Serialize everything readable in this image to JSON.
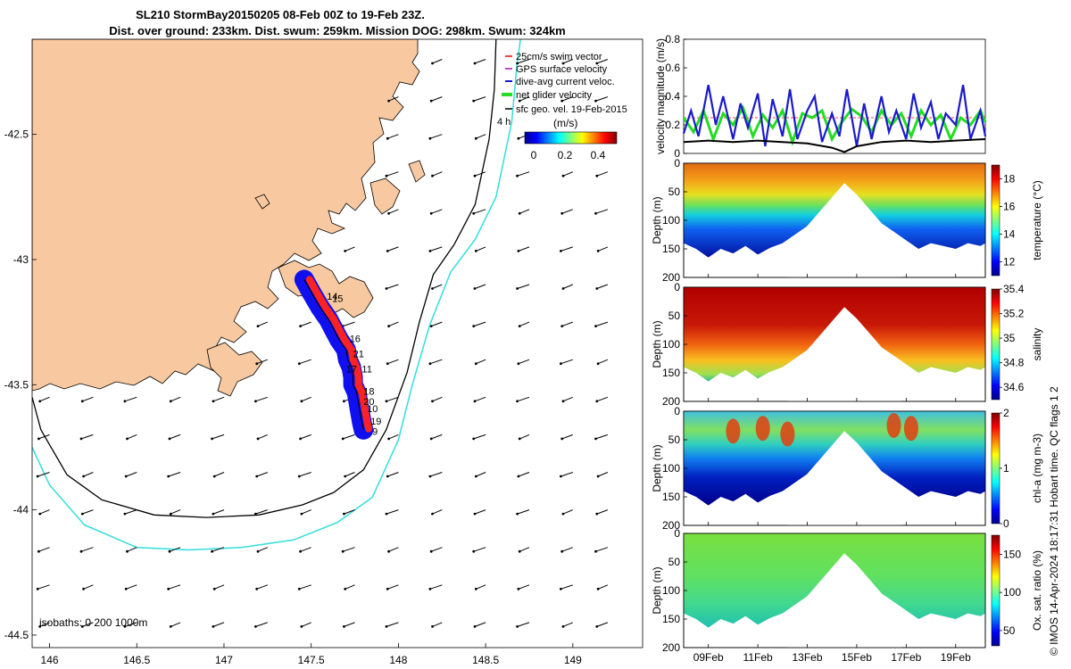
{
  "header": {
    "title_line1": "SL210 StormBay20150205 08-Feb 00Z to 19-Feb 23Z.",
    "title_line2": "Dist. over ground: 233km. Dist. swum: 259km. Mission DOG: 298km. Swum: 324km"
  },
  "colors": {
    "land": "#F8C9A0",
    "sea": "#FFFFFF",
    "isobath_200": "#000000",
    "isobath_1000": "#33DDDD",
    "track_red": "#FF2222",
    "track_blue": "#1010EE",
    "gps": "#CC44CC",
    "dive_avg": "#1a1acc",
    "net_glider": "#22DD22",
    "swim_marker": "#FF4040"
  },
  "credit": "© IMOS 14-Apr-2024 18:17:31 Hobart time. QC flags 1  2",
  "chart_data": [
    {
      "id": "map",
      "type": "scatter",
      "title": "glider track map",
      "xlim": [
        145.9,
        149.4
      ],
      "ylim": [
        -44.55,
        -42.12
      ],
      "xticks": [
        146,
        146.5,
        147,
        147.5,
        148,
        148.5,
        149
      ],
      "xtick_labels": [
        "146",
        "146.5",
        "147",
        "147.5",
        "148",
        "148.5",
        "149"
      ],
      "yticks": [
        -42.5,
        -43,
        -43.5,
        -44,
        -44.5
      ],
      "ytick_labels": [
        "-42.5",
        "-43",
        "-43.5",
        "-44",
        "-44.5"
      ],
      "legend": {
        "position": "top-right",
        "entries": [
          "25cm/s swim vector",
          "GPS surface velocity",
          "dive-avg current veloc.",
          "net glider velocity",
          "sfc geo. vel. 19-Feb-2015"
        ],
        "vector_label": "4 h"
      },
      "colorbar": {
        "label": "(m/s)",
        "range": [
          0,
          0.5
        ],
        "ticks": [
          0,
          0.2,
          0.4
        ],
        "tick_labels": [
          "0",
          "0.2",
          "0.4"
        ]
      },
      "isobath_label": "isobaths: 0   200  1000m",
      "day_labels": [
        {
          "text": "14",
          "lon": 147.59,
          "lat": -43.16
        },
        {
          "text": "15",
          "lon": 147.62,
          "lat": -43.17
        },
        {
          "text": "16",
          "lon": 147.72,
          "lat": -43.33
        },
        {
          "text": "21",
          "lon": 147.74,
          "lat": -43.39
        },
        {
          "text": "17",
          "lon": 147.7,
          "lat": -43.45
        },
        {
          "text": "11",
          "lon": 147.79,
          "lat": -43.45
        },
        {
          "text": "18",
          "lon": 147.8,
          "lat": -43.54
        },
        {
          "text": "20",
          "lon": 147.8,
          "lat": -43.58
        },
        {
          "text": "10",
          "lon": 147.82,
          "lat": -43.61
        },
        {
          "text": "19",
          "lon": 147.84,
          "lat": -43.66
        },
        {
          "text": "9",
          "lon": 147.85,
          "lat": -43.7
        }
      ],
      "track": [
        [
          147.46,
          -43.08
        ],
        [
          147.5,
          -43.13
        ],
        [
          147.55,
          -43.19
        ],
        [
          147.6,
          -43.24
        ],
        [
          147.63,
          -43.28
        ],
        [
          147.66,
          -43.32
        ],
        [
          147.7,
          -43.36
        ],
        [
          147.71,
          -43.4
        ],
        [
          147.73,
          -43.43
        ],
        [
          147.74,
          -43.47
        ],
        [
          147.74,
          -43.5
        ],
        [
          147.76,
          -43.53
        ],
        [
          147.77,
          -43.57
        ],
        [
          147.78,
          -43.61
        ],
        [
          147.79,
          -43.65
        ],
        [
          147.8,
          -43.68
        ]
      ],
      "isobath_200": [
        [
          145.9,
          -43.55
        ],
        [
          145.95,
          -43.68
        ],
        [
          146.1,
          -43.86
        ],
        [
          146.3,
          -43.96
        ],
        [
          146.6,
          -44.02
        ],
        [
          146.9,
          -44.03
        ],
        [
          147.2,
          -44.02
        ],
        [
          147.45,
          -43.98
        ],
        [
          147.63,
          -43.93
        ],
        [
          147.8,
          -43.84
        ],
        [
          147.93,
          -43.68
        ],
        [
          148.05,
          -43.45
        ],
        [
          148.12,
          -43.25
        ],
        [
          148.2,
          -43.06
        ],
        [
          148.32,
          -42.94
        ],
        [
          148.44,
          -42.78
        ],
        [
          148.52,
          -42.52
        ],
        [
          148.55,
          -42.32
        ],
        [
          148.56,
          -42.12
        ]
      ],
      "isobath_1000": [
        [
          145.9,
          -43.75
        ],
        [
          146.0,
          -43.9
        ],
        [
          146.2,
          -44.06
        ],
        [
          146.5,
          -44.15
        ],
        [
          146.8,
          -44.16
        ],
        [
          147.1,
          -44.15
        ],
        [
          147.4,
          -44.12
        ],
        [
          147.65,
          -44.05
        ],
        [
          147.85,
          -43.95
        ],
        [
          148.0,
          -43.72
        ],
        [
          148.08,
          -43.5
        ],
        [
          148.18,
          -43.26
        ],
        [
          148.3,
          -43.05
        ],
        [
          148.44,
          -42.92
        ],
        [
          148.56,
          -42.75
        ],
        [
          148.65,
          -42.45
        ],
        [
          148.68,
          -42.22
        ],
        [
          148.7,
          -42.12
        ]
      ],
      "vector_field": {
        "lons": [
          146.0,
          146.25,
          146.5,
          146.75,
          147.0,
          147.25,
          147.5,
          147.75,
          148.0,
          148.25,
          148.5,
          148.75,
          149.0,
          149.2
        ],
        "lats": [
          -42.2,
          -42.35,
          -42.5,
          -42.65,
          -42.8,
          -42.95,
          -43.1,
          -43.25,
          -43.4,
          -43.55,
          -43.7,
          -43.85,
          -44.0,
          -44.15,
          -44.3,
          -44.45
        ],
        "u": -0.12,
        "v": -0.05
      }
    },
    {
      "id": "velocity",
      "type": "line",
      "ylabel": "velocity magnitude (m/s)",
      "ylim": [
        0,
        0.8
      ],
      "yticks": [
        0,
        0.2,
        0.4,
        0.6,
        0.8
      ],
      "ytick_labels": [
        "0",
        "0.2",
        "0.4",
        "0.6",
        "0.8"
      ],
      "xlim": [
        8.0,
        20.2
      ],
      "series": [
        {
          "name": "net glider velocity",
          "x": [
            8.0,
            8.4,
            8.8,
            9.2,
            9.6,
            10.0,
            10.4,
            10.8,
            11.2,
            11.6,
            12.0,
            12.4,
            12.8,
            13.2,
            13.6,
            14.0,
            14.4,
            14.8,
            15.2,
            15.6,
            16.0,
            16.4,
            16.8,
            17.2,
            17.6,
            18.0,
            18.4,
            18.8,
            19.2,
            19.6,
            20.0,
            20.2
          ],
          "values": [
            0.25,
            0.15,
            0.3,
            0.1,
            0.28,
            0.2,
            0.32,
            0.12,
            0.27,
            0.18,
            0.3,
            0.08,
            0.28,
            0.25,
            0.3,
            0.1,
            0.22,
            0.31,
            0.26,
            0.15,
            0.3,
            0.2,
            0.28,
            0.12,
            0.3,
            0.2,
            0.27,
            0.1,
            0.25,
            0.2,
            0.3,
            0.22
          ]
        },
        {
          "name": "dive-avg current veloc.",
          "x": [
            8.0,
            8.3,
            8.6,
            9.0,
            9.3,
            9.6,
            10.0,
            10.3,
            10.6,
            11.0,
            11.3,
            11.6,
            12.0,
            12.3,
            12.6,
            13.0,
            13.3,
            13.6,
            14.0,
            14.3,
            14.6,
            15.0,
            15.3,
            15.6,
            16.0,
            16.3,
            16.6,
            17.0,
            17.3,
            17.6,
            18.0,
            18.3,
            18.6,
            19.0,
            19.3,
            19.6,
            20.0,
            20.2
          ],
          "values": [
            0.14,
            0.3,
            0.12,
            0.48,
            0.2,
            0.4,
            0.1,
            0.35,
            0.18,
            0.42,
            0.05,
            0.38,
            0.12,
            0.45,
            0.1,
            0.3,
            0.4,
            0.08,
            0.28,
            0.12,
            0.45,
            0.05,
            0.35,
            0.1,
            0.4,
            0.15,
            0.3,
            0.1,
            0.42,
            0.18,
            0.36,
            0.1,
            0.28,
            0.2,
            0.48,
            0.1,
            0.3,
            0.12
          ]
        },
        {
          "name": "sfc geo. vel.",
          "x": [
            8.0,
            9.0,
            10.0,
            11.0,
            12.0,
            13.0,
            14.0,
            14.5,
            15.0,
            16.0,
            17.0,
            18.0,
            19.0,
            20.2
          ],
          "values": [
            0.08,
            0.09,
            0.08,
            0.09,
            0.08,
            0.07,
            0.04,
            0.01,
            0.05,
            0.08,
            0.09,
            0.08,
            0.09,
            0.1
          ]
        },
        {
          "name": "25cm/s swim vector",
          "x": [
            8.0,
            20.2
          ],
          "values": [
            0.25,
            0.25
          ]
        }
      ]
    },
    {
      "id": "temperature",
      "type": "heatmap",
      "ylabel": "Depth (m)",
      "colorbar_label": "temperature (°C)",
      "clim": [
        11,
        19
      ],
      "cticks": [
        12,
        14,
        16,
        18
      ],
      "ctick_labels": [
        "12",
        "14",
        "16",
        "18"
      ],
      "yticks": [
        0,
        50,
        100,
        150,
        200
      ],
      "ytick_labels": [
        "0",
        "50",
        "100",
        "150",
        "200"
      ]
    },
    {
      "id": "salinity",
      "type": "heatmap",
      "ylabel": "Depth (m)",
      "colorbar_label": "salinity",
      "clim": [
        34.5,
        35.4
      ],
      "cticks": [
        34.6,
        34.8,
        35,
        35.2,
        35.4
      ],
      "ctick_labels": [
        "34.6",
        "34.8",
        "35",
        "35.2",
        "35.4"
      ],
      "yticks": [
        0,
        50,
        100,
        150,
        200
      ],
      "ytick_labels": [
        "0",
        "50",
        "100",
        "150",
        "200"
      ]
    },
    {
      "id": "chla",
      "type": "heatmap",
      "ylabel": "Depth (m)",
      "colorbar_label": "chl-a (mg m-3)",
      "clim": [
        0,
        2
      ],
      "cticks": [
        0,
        1,
        2
      ],
      "ctick_labels": [
        "0",
        "1",
        "2"
      ],
      "yticks": [
        0,
        50,
        100,
        150,
        200
      ],
      "ytick_labels": [
        "0",
        "50",
        "100",
        "150",
        "200"
      ]
    },
    {
      "id": "oxygen",
      "type": "heatmap",
      "ylabel": "Depth (m)",
      "colorbar_label": "Ox. sat. ratio (%)",
      "clim": [
        30,
        175
      ],
      "cticks": [
        50,
        100,
        150
      ],
      "ctick_labels": [
        "50",
        "100",
        "150"
      ],
      "yticks": [
        0,
        50,
        100,
        150,
        200
      ],
      "ytick_labels": [
        "0",
        "50",
        "100",
        "150",
        "200"
      ],
      "xticks": [
        9,
        11,
        13,
        15,
        17,
        19
      ],
      "xtick_labels": [
        "09Feb",
        "11Feb",
        "13Feb",
        "15Feb",
        "17Feb",
        "19Feb"
      ]
    }
  ]
}
